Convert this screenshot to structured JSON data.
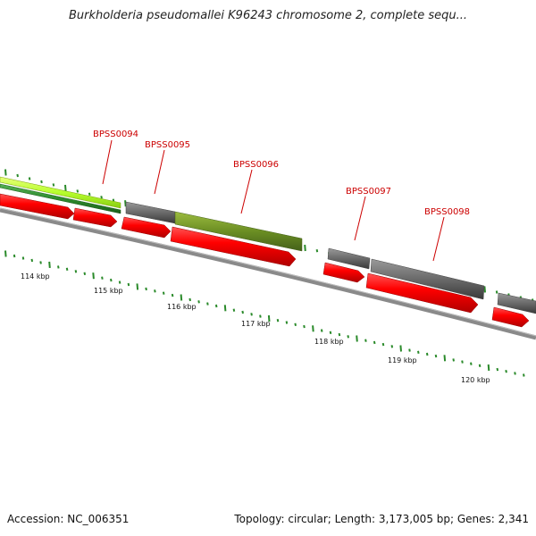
{
  "header": {
    "title": "Burkholderia pseudomallei K96243 chromosome 2, complete sequ..."
  },
  "footer": {
    "accession": "Accession: NC_006351",
    "stats": "Topology: circular; Length: 3,173,005 bp; Genes: 2,341"
  },
  "scale_labels": [
    "114 kbp",
    "115 kbp",
    "116 kbp",
    "117 kbp",
    "118 kbp",
    "119 kbp",
    "120 kbp"
  ],
  "gene_labels": [
    "BPSS0094",
    "BPSS0095",
    "BPSS0096",
    "BPSS0097",
    "BPSS0098"
  ],
  "colors": {
    "gene_red": "#ff0000",
    "gene_gray": "#6e6e6e",
    "gene_olive": "#6b8e23",
    "gene_lime": "#b7ff2e",
    "gene_darkgreen": "#2e8b2e",
    "backbone": "#777777",
    "tick_green": "#2a8a2a",
    "label_red": "#cc0000"
  }
}
